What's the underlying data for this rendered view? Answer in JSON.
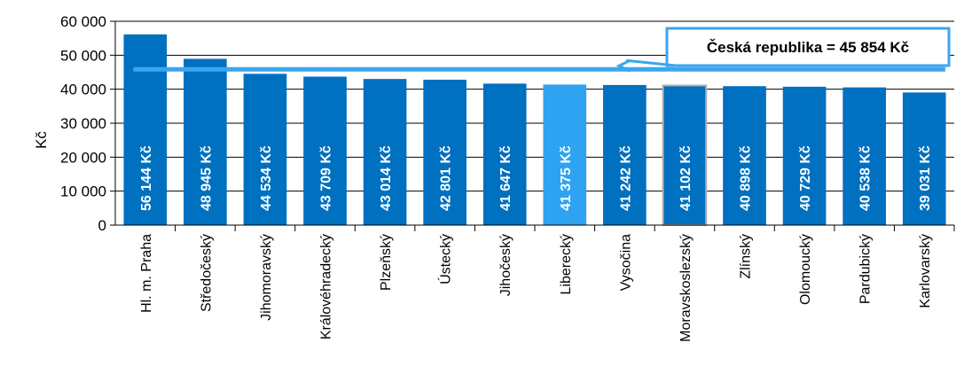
{
  "chart_data": {
    "type": "bar",
    "ylabel": "Kč",
    "ylim": [
      0,
      60000
    ],
    "yticks": [
      0,
      10000,
      20000,
      30000,
      40000,
      50000,
      60000
    ],
    "ytick_labels": [
      "0",
      "10 000",
      "20 000",
      "30 000",
      "40 000",
      "50 000",
      "60 000"
    ],
    "categories": [
      "Hl. m. Praha",
      "Středočeský",
      "Jihomoravský",
      "Královéhradecký",
      "Plzeňský",
      "Ústecký",
      "Jihočeský",
      "Liberecký",
      "Vysočina",
      "Moravskoslezský",
      "Zlínský",
      "Olomoucký",
      "Pardubický",
      "Karlovarský"
    ],
    "values": [
      56144,
      48945,
      44534,
      43709,
      43014,
      42801,
      41647,
      41375,
      41242,
      41102,
      40898,
      40729,
      40538,
      39031
    ],
    "value_labels": [
      "56 144 Kč",
      "48 945 Kč",
      "44 534 Kč",
      "43 709 Kč",
      "43 014 Kč",
      "42 801 Kč",
      "41 647 Kč",
      "41 375 Kč",
      "41 242 Kč",
      "41 102 Kč",
      "40 898 Kč",
      "40 729 Kč",
      "40 538 Kč",
      "39 031 Kč"
    ],
    "highlight_index": 7,
    "outlined_index": 9,
    "reference_line": {
      "value": 45854,
      "label": "Česká republika = 45 854 Kč"
    },
    "colors": {
      "bar": "#0070c0",
      "highlight": "#2ea3f2",
      "reference": "#3aa6ef",
      "outline": "#b0b0b0"
    },
    "grid": true
  }
}
